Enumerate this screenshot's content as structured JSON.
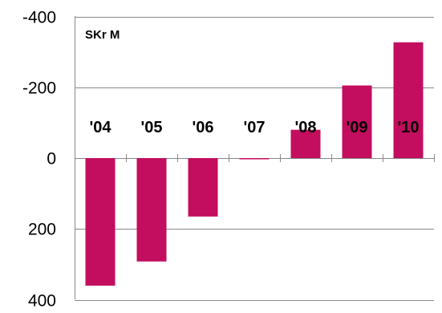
{
  "chart_data": {
    "type": "bar",
    "unit_label": "SKr M",
    "categories": [
      "'04",
      "'05",
      "'06",
      "'07",
      "'08",
      "'09",
      "'10"
    ],
    "values": [
      360,
      292,
      165,
      2,
      -80,
      -205,
      -327
    ],
    "y_ticks": [
      "-400",
      "-200",
      "0",
      "200",
      "400"
    ],
    "y_tick_values": [
      -400,
      -200,
      0,
      200,
      400
    ],
    "ylim": [
      -400,
      400
    ],
    "y_axis_inverted": true,
    "grid": true,
    "bar_color": "#c30d5e",
    "grid_color": "#888888"
  }
}
